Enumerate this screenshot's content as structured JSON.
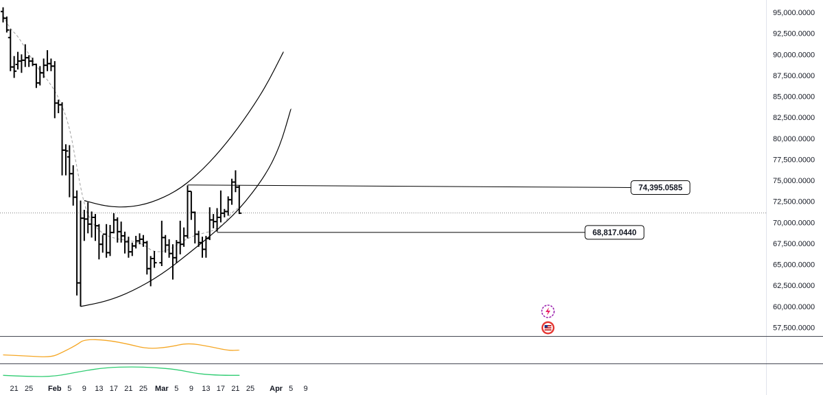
{
  "chart_data": {
    "type": "ohlc",
    "x_tick_labels": [
      "21",
      "25",
      "Feb",
      "5",
      "9",
      "13",
      "17",
      "21",
      "25",
      "Mar",
      "5",
      "9",
      "13",
      "17",
      "21",
      "25",
      "Apr",
      "5",
      "9"
    ],
    "y_tick_labels": [
      "95,000.0000",
      "92,500.0000",
      "90,000.0000",
      "87,500.0000",
      "85,000.0000",
      "82,500.0000",
      "80,000.0000",
      "77,500.0000",
      "75,000.0000",
      "72,500.0000",
      "70,000.0000",
      "67,500.0000",
      "65,000.0000",
      "62,500.0000",
      "60,000.0000",
      "57,500.0000"
    ],
    "ylim": [
      56500,
      96000
    ],
    "grid": false,
    "bar_color": "#000000",
    "moving_average_color": "#9e9e9e",
    "channel_color": "#000000",
    "current_price_line": 71050,
    "ohlc": [
      {
        "date": "Jan 18",
        "open": 95100,
        "high": 95600,
        "low": 93800,
        "close": 94300
      },
      {
        "date": "Jan 19",
        "open": 94300,
        "high": 94500,
        "low": 92600,
        "close": 92900
      },
      {
        "date": "Jan 20",
        "open": 92000,
        "high": 93000,
        "low": 88000,
        "close": 88500
      },
      {
        "date": "Jan 21",
        "open": 88500,
        "high": 89800,
        "low": 87200,
        "close": 88000
      },
      {
        "date": "Jan 22",
        "open": 88800,
        "high": 90300,
        "low": 88200,
        "close": 89200
      },
      {
        "date": "Jan 23",
        "open": 89200,
        "high": 90000,
        "low": 87800,
        "close": 89300
      },
      {
        "date": "Jan 24",
        "open": 89300,
        "high": 91200,
        "low": 88500,
        "close": 89600
      },
      {
        "date": "Jan 25",
        "open": 89600,
        "high": 89900,
        "low": 88500,
        "close": 89200
      },
      {
        "date": "Jan 26",
        "open": 89200,
        "high": 89600,
        "low": 88600,
        "close": 88800
      },
      {
        "date": "Jan 27",
        "open": 88800,
        "high": 88900,
        "low": 86000,
        "close": 86600
      },
      {
        "date": "Jan 28",
        "open": 86600,
        "high": 88600,
        "low": 86300,
        "close": 87800
      },
      {
        "date": "Jan 29",
        "open": 87800,
        "high": 89500,
        "low": 87200,
        "close": 88700
      },
      {
        "date": "Jan 30",
        "open": 88700,
        "high": 90500,
        "low": 88000,
        "close": 88900
      },
      {
        "date": "Jan 31",
        "open": 88900,
        "high": 89500,
        "low": 88000,
        "close": 88600
      },
      {
        "date": "Feb 1",
        "open": 88600,
        "high": 89200,
        "low": 82400,
        "close": 84200
      },
      {
        "date": "Feb 2",
        "open": 84200,
        "high": 84600,
        "low": 83000,
        "close": 84000
      },
      {
        "date": "Feb 3",
        "open": 84000,
        "high": 84300,
        "low": 75600,
        "close": 78600
      },
      {
        "date": "Feb 4",
        "open": 78600,
        "high": 79300,
        "low": 75600,
        "close": 78500
      },
      {
        "date": "Feb 5",
        "open": 77800,
        "high": 79200,
        "low": 73000,
        "close": 75800
      },
      {
        "date": "Feb 6",
        "open": 75800,
        "high": 76800,
        "low": 72000,
        "close": 73000
      },
      {
        "date": "Feb 7",
        "open": 73000,
        "high": 73800,
        "low": 61300,
        "close": 62800
      },
      {
        "date": "Feb 8",
        "open": 62800,
        "high": 72600,
        "low": 60000,
        "close": 70500
      },
      {
        "date": "Feb 9",
        "open": 70500,
        "high": 71500,
        "low": 67800,
        "close": 70400
      },
      {
        "date": "Feb 10",
        "open": 70400,
        "high": 72400,
        "low": 68700,
        "close": 69800
      },
      {
        "date": "Feb 11",
        "open": 69800,
        "high": 71300,
        "low": 68200,
        "close": 70600
      },
      {
        "date": "Feb 12",
        "open": 70600,
        "high": 71000,
        "low": 67800,
        "close": 69600
      },
      {
        "date": "Feb 13",
        "open": 69600,
        "high": 69800,
        "low": 65600,
        "close": 67400
      },
      {
        "date": "Feb 14",
        "open": 67400,
        "high": 68500,
        "low": 66400,
        "close": 68600
      },
      {
        "date": "Feb 15",
        "open": 68600,
        "high": 69800,
        "low": 65800,
        "close": 66400
      },
      {
        "date": "Feb 16",
        "open": 66400,
        "high": 69700,
        "low": 66000,
        "close": 68800
      },
      {
        "date": "Feb 17",
        "open": 68800,
        "high": 71100,
        "low": 68700,
        "close": 70300
      },
      {
        "date": "Feb 18",
        "open": 70300,
        "high": 70600,
        "low": 67600,
        "close": 68900
      },
      {
        "date": "Feb 19",
        "open": 68900,
        "high": 70100,
        "low": 67600,
        "close": 68400
      },
      {
        "date": "Feb 20",
        "open": 68400,
        "high": 68900,
        "low": 66300,
        "close": 67700
      },
      {
        "date": "Feb 21",
        "open": 67700,
        "high": 68300,
        "low": 65800,
        "close": 66500
      },
      {
        "date": "Feb 22",
        "open": 66500,
        "high": 67600,
        "low": 66000,
        "close": 67200
      },
      {
        "date": "Feb 23",
        "open": 67200,
        "high": 68400,
        "low": 66900,
        "close": 67800
      },
      {
        "date": "Feb 24",
        "open": 67800,
        "high": 68700,
        "low": 67400,
        "close": 68000
      },
      {
        "date": "Feb 25",
        "open": 68000,
        "high": 68500,
        "low": 67100,
        "close": 67600
      },
      {
        "date": "Feb 26",
        "open": 67600,
        "high": 67800,
        "low": 63800,
        "close": 64500
      },
      {
        "date": "Feb 27",
        "open": 64500,
        "high": 66000,
        "low": 62400,
        "close": 65700
      },
      {
        "date": "Feb 28",
        "open": 65700,
        "high": 66600,
        "low": 64600,
        "close": 65200
      },
      {
        "date": "Mar 1",
        "open": 65200,
        "high": 70200,
        "low": 64800,
        "close": 68200
      },
      {
        "date": "Mar 2",
        "open": 68200,
        "high": 68500,
        "low": 66400,
        "close": 67300
      },
      {
        "date": "Mar 3",
        "open": 67300,
        "high": 68000,
        "low": 65800,
        "close": 66300
      },
      {
        "date": "Mar 4",
        "open": 66300,
        "high": 67400,
        "low": 63200,
        "close": 65800
      },
      {
        "date": "Mar 5",
        "open": 65800,
        "high": 67900,
        "low": 65200,
        "close": 67600
      },
      {
        "date": "Mar 6",
        "open": 67600,
        "high": 70200,
        "low": 66200,
        "close": 67400
      },
      {
        "date": "Mar 7",
        "open": 67400,
        "high": 69400,
        "low": 67100,
        "close": 68400
      },
      {
        "date": "Mar 8",
        "open": 68400,
        "high": 74400,
        "low": 68100,
        "close": 73700
      },
      {
        "date": "Mar 9",
        "open": 73700,
        "high": 73700,
        "low": 70300,
        "close": 71200
      },
      {
        "date": "Mar 10",
        "open": 71200,
        "high": 71300,
        "low": 67500,
        "close": 68600
      },
      {
        "date": "Mar 11",
        "open": 68600,
        "high": 69000,
        "low": 67100,
        "close": 67600
      },
      {
        "date": "Mar 12",
        "open": 67600,
        "high": 68300,
        "low": 65800,
        "close": 66800
      },
      {
        "date": "Mar 13",
        "open": 66800,
        "high": 68400,
        "low": 65800,
        "close": 68100
      },
      {
        "date": "Mar 14",
        "open": 68100,
        "high": 71800,
        "low": 67900,
        "close": 70300
      },
      {
        "date": "Mar 15",
        "open": 70300,
        "high": 71000,
        "low": 69300,
        "close": 70100
      },
      {
        "date": "Mar 16",
        "open": 70100,
        "high": 71700,
        "low": 68900,
        "close": 70600
      },
      {
        "date": "Mar 17",
        "open": 70600,
        "high": 73800,
        "low": 70000,
        "close": 71100
      },
      {
        "date": "Mar 18",
        "open": 71100,
        "high": 71600,
        "low": 70600,
        "close": 71300
      },
      {
        "date": "Mar 19",
        "open": 71300,
        "high": 73100,
        "low": 70800,
        "close": 72700
      },
      {
        "date": "Mar 20",
        "open": 72700,
        "high": 75200,
        "low": 72100,
        "close": 74800
      },
      {
        "date": "Mar 21",
        "open": 74800,
        "high": 76200,
        "low": 73600,
        "close": 74200
      },
      {
        "date": "Mar 22",
        "open": 74200,
        "high": 74400,
        "low": 71000,
        "close": 71100
      }
    ],
    "moving_average": [
      {
        "date": "Jan 18",
        "value": 94600
      },
      {
        "date": "Jan 20",
        "value": 93000
      },
      {
        "date": "Jan 22",
        "value": 92200
      },
      {
        "date": "Jan 25",
        "value": 90000
      },
      {
        "date": "Jan 28",
        "value": 88000
      },
      {
        "date": "Jan 30",
        "value": 87000
      },
      {
        "date": "Feb 2",
        "value": 85000
      },
      {
        "date": "Feb 5",
        "value": 81500
      },
      {
        "date": "Feb 7",
        "value": 76500
      },
      {
        "date": "Feb 9",
        "value": 72000
      },
      {
        "date": "Feb 11",
        "value": 70000
      },
      {
        "date": "Feb 14",
        "value": 68600
      },
      {
        "date": "Feb 18",
        "value": 68000
      },
      {
        "date": "Feb 22",
        "value": 67800
      },
      {
        "date": "Feb 25",
        "value": 67400
      },
      {
        "date": "Feb 28",
        "value": 66400
      },
      {
        "date": "Mar 3",
        "value": 66700
      },
      {
        "date": "Mar 6",
        "value": 67600
      },
      {
        "date": "Mar 9",
        "value": 68300
      },
      {
        "date": "Mar 12",
        "value": 68700
      },
      {
        "date": "Mar 15",
        "value": 69000
      },
      {
        "date": "Mar 18",
        "value": 69900
      },
      {
        "date": "Mar 20",
        "value": 71200
      },
      {
        "date": "Mar 22",
        "value": 71800
      }
    ],
    "channel_top": [
      {
        "date": "Feb 9",
        "value": 72600
      },
      {
        "date": "Feb 15",
        "value": 71900
      },
      {
        "date": "Feb 21",
        "value": 71800
      },
      {
        "date": "Feb 27",
        "value": 72300
      },
      {
        "date": "Mar 5",
        "value": 73700
      },
      {
        "date": "Mar 11",
        "value": 75800
      },
      {
        "date": "Mar 17",
        "value": 78600
      },
      {
        "date": "Mar 23",
        "value": 82000
      },
      {
        "date": "Mar 29",
        "value": 86000
      },
      {
        "date": "Apr 3",
        "value": 90300
      }
    ],
    "channel_bottom": [
      {
        "date": "Feb 8",
        "value": 60000
      },
      {
        "date": "Feb 15",
        "value": 60600
      },
      {
        "date": "Feb 22",
        "value": 61800
      },
      {
        "date": "Mar 1",
        "value": 63800
      },
      {
        "date": "Mar 8",
        "value": 66200
      },
      {
        "date": "Mar 15",
        "value": 68700
      },
      {
        "date": "Mar 22",
        "value": 71500
      },
      {
        "date": "Mar 29",
        "value": 75500
      },
      {
        "date": "Apr 2",
        "value": 79000
      },
      {
        "date": "Apr 5",
        "value": 83500
      }
    ],
    "annotations": [
      {
        "label": "74,395.0585",
        "value": 74395.0585,
        "from": "Mar 8",
        "to": "Apr 2"
      },
      {
        "label": "68,817.0440",
        "value": 68817.044,
        "from": "Mar 16",
        "to": "Mar 26"
      }
    ],
    "indicator_panels": [
      {
        "color": "#f5a623",
        "values": [
          {
            "date": "Jan 18",
            "v": 0.3
          },
          {
            "date": "Jan 25",
            "v": 0.25
          },
          {
            "date": "Jan 31",
            "v": 0.2
          },
          {
            "date": "Feb 3",
            "v": 0.4
          },
          {
            "date": "Feb 7",
            "v": 0.72
          },
          {
            "date": "Feb 9",
            "v": 0.95
          },
          {
            "date": "Feb 15",
            "v": 0.92
          },
          {
            "date": "Feb 21",
            "v": 0.75
          },
          {
            "date": "Feb 26",
            "v": 0.55
          },
          {
            "date": "Mar 3",
            "v": 0.62
          },
          {
            "date": "Mar 8",
            "v": 0.8
          },
          {
            "date": "Mar 14",
            "v": 0.65
          },
          {
            "date": "Mar 19",
            "v": 0.48
          },
          {
            "date": "Mar 22",
            "v": 0.5
          }
        ]
      },
      {
        "color": "#2ecc71",
        "values": [
          {
            "date": "Jan 18",
            "v": 0.25
          },
          {
            "date": "Jan 25",
            "v": 0.15
          },
          {
            "date": "Feb 1",
            "v": 0.15
          },
          {
            "date": "Feb 8",
            "v": 0.55
          },
          {
            "date": "Feb 15",
            "v": 0.85
          },
          {
            "date": "Feb 22",
            "v": 0.9
          },
          {
            "date": "Feb 28",
            "v": 0.85
          },
          {
            "date": "Mar 5",
            "v": 0.7
          },
          {
            "date": "Mar 11",
            "v": 0.35
          },
          {
            "date": "Mar 17",
            "v": 0.25
          },
          {
            "date": "Mar 22",
            "v": 0.25
          }
        ]
      }
    ]
  },
  "icons": [
    "lightning-icon",
    "us-flag-icon"
  ]
}
